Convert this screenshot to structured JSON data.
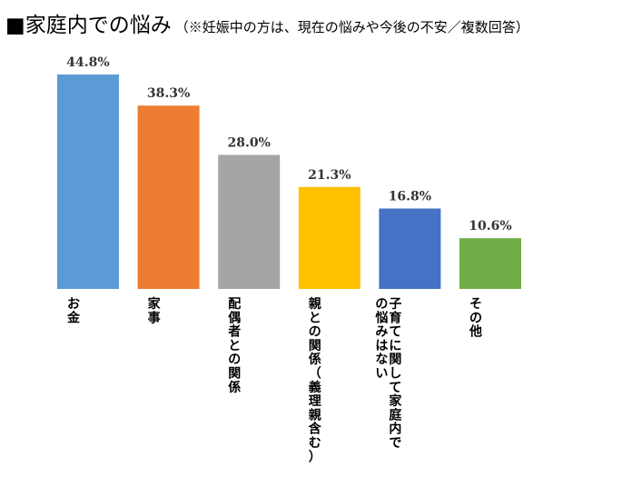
{
  "title": {
    "main": "■家庭内での悩み",
    "sub": "（※妊娠中の方は、現在の悩みや今後の不安／複数回答）"
  },
  "chart_data": {
    "type": "bar",
    "title": "■家庭内での悩み",
    "subtitle": "（※妊娠中の方は、現在の悩みや今後の不安／複数回答）",
    "categories": [
      [
        "お金"
      ],
      [
        "家事"
      ],
      [
        "配偶者との関係"
      ],
      [
        "親との関係（義理親含む）"
      ],
      [
        "子育てに関して家庭内で",
        "の悩みはない"
      ],
      [
        "その他"
      ]
    ],
    "values": [
      44.8,
      38.3,
      28.0,
      21.3,
      16.8,
      10.6
    ],
    "value_labels": [
      "44.8%",
      "38.3%",
      "28.0%",
      "21.3%",
      "16.8%",
      "10.6%"
    ],
    "colors": [
      "#5B9BD5",
      "#ED7D31",
      "#A5A5A5",
      "#FFC000",
      "#4472C4",
      "#70AD47"
    ],
    "ylim": [
      0,
      44.8
    ],
    "grid": false,
    "legend": "none",
    "xlabel": "",
    "ylabel": ""
  }
}
